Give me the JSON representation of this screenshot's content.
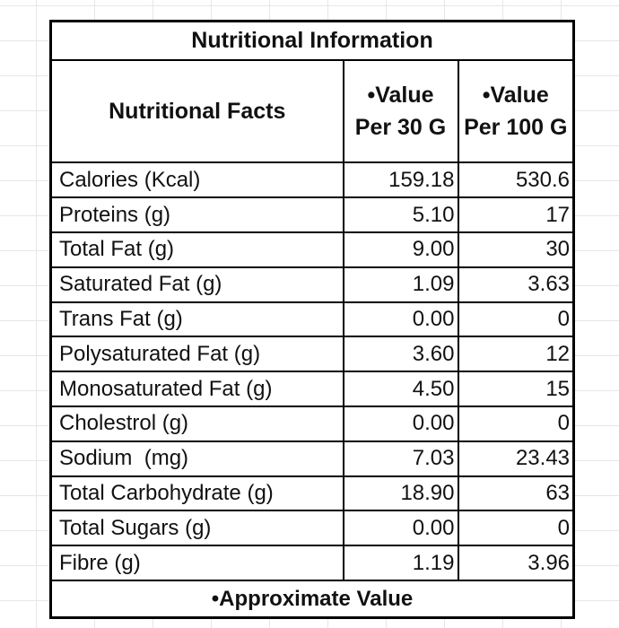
{
  "table": {
    "title": "Nutritional Information",
    "headers": {
      "facts": "Nutritional Facts",
      "per30": "•Value Per 30 G",
      "per100": "•Value Per 100 G"
    },
    "rows": [
      {
        "label": "Calories (Kcal)",
        "per30": "159.18",
        "per100": "530.6"
      },
      {
        "label": "Proteins (g)",
        "per30": "5.10",
        "per100": "17"
      },
      {
        "label": "Total Fat (g)",
        "per30": "9.00",
        "per100": "30"
      },
      {
        "label": "Saturated Fat (g)",
        "per30": "1.09",
        "per100": "3.63"
      },
      {
        "label": "Trans Fat (g)",
        "per30": "0.00",
        "per100": "0"
      },
      {
        "label": "Polysaturated Fat (g)",
        "per30": "3.60",
        "per100": "12"
      },
      {
        "label": "Monosaturated Fat (g)",
        "per30": "4.50",
        "per100": "15"
      },
      {
        "label": "Cholestrol (g)",
        "per30": "0.00",
        "per100": "0"
      },
      {
        "label": "Sodium  (mg)",
        "per30": "7.03",
        "per100": "23.43"
      },
      {
        "label": "Total Carbohydrate (g)",
        "per30": "18.90",
        "per100": "63"
      },
      {
        "label": "Total Sugars (g)",
        "per30": "0.00",
        "per100": "0"
      },
      {
        "label": "Fibre (g)",
        "per30": "1.19",
        "per100": "3.96"
      }
    ],
    "footer": "•Approximate Value"
  }
}
